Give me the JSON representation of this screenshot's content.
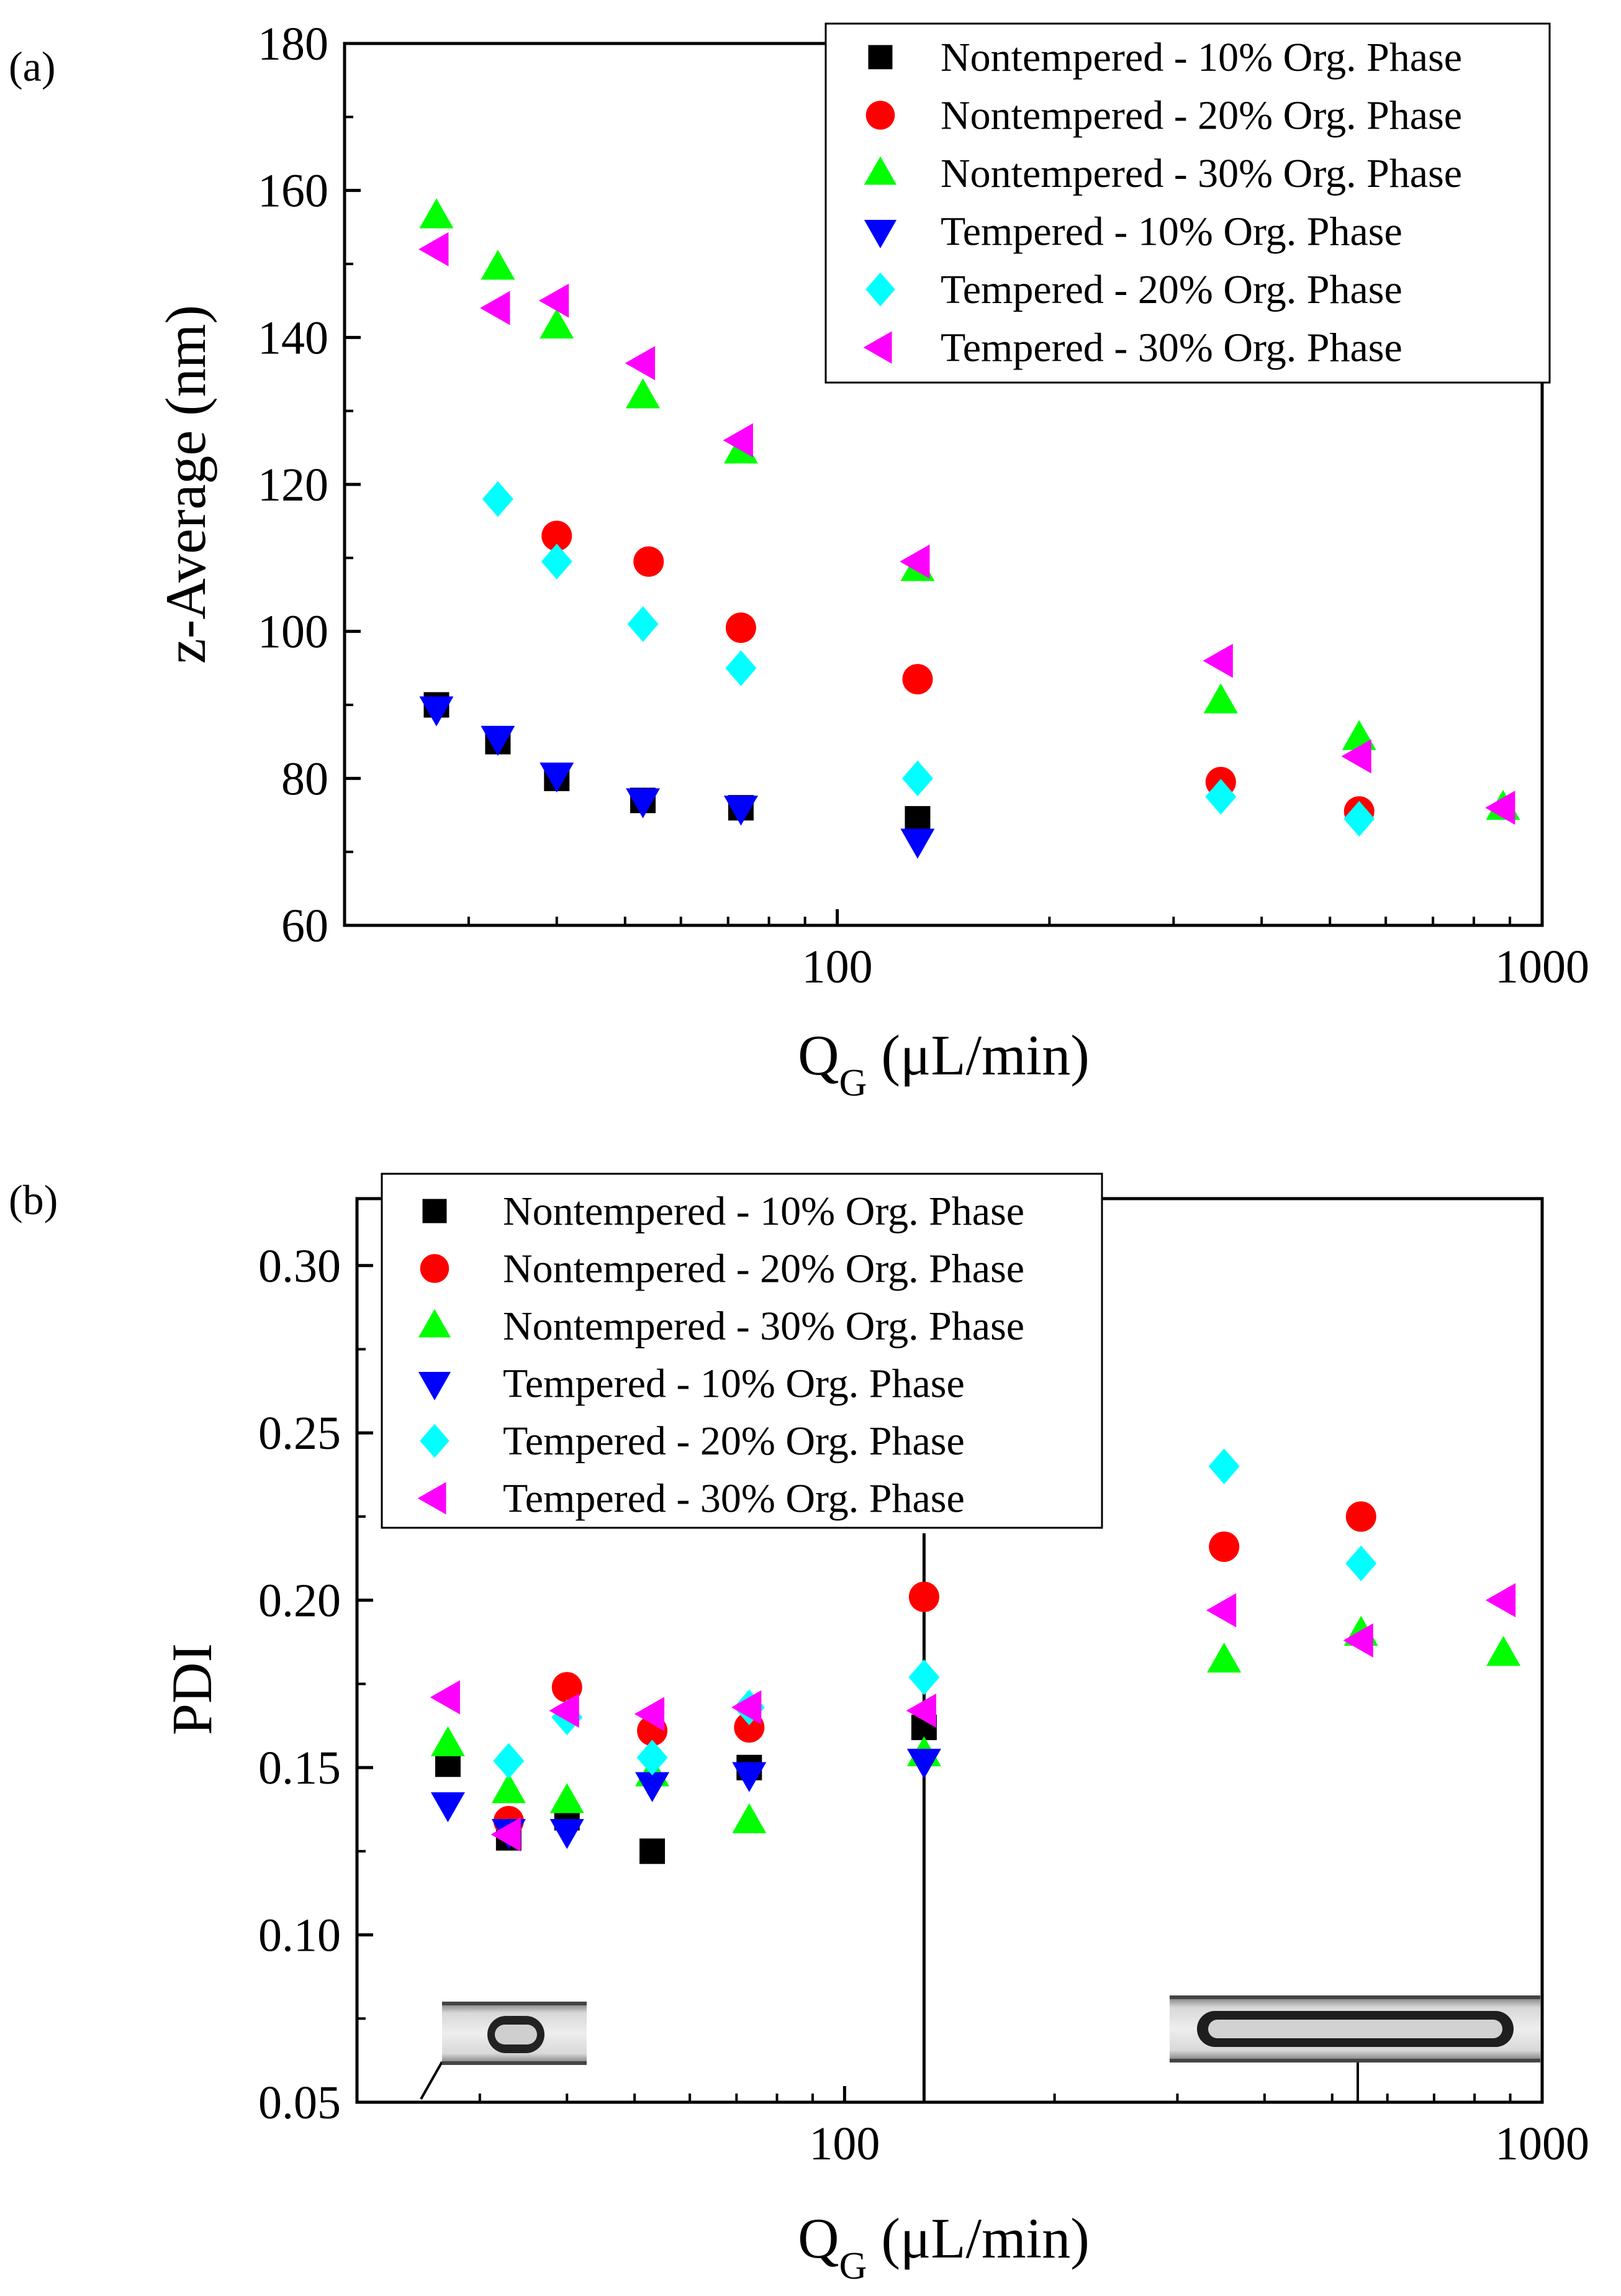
{
  "chart_data": [
    {
      "panel_label": "(a)",
      "type": "scatter",
      "xscale": "log",
      "xlim": [
        20,
        1000
      ],
      "ylim": [
        60,
        180
      ],
      "xticks": [
        100,
        1000
      ],
      "xtick_labels": [
        "100",
        "1000"
      ],
      "yticks": [
        60,
        80,
        100,
        120,
        140,
        160,
        180
      ],
      "ytick_labels": [
        "60",
        "80",
        "100",
        "120",
        "140",
        "160",
        "180"
      ],
      "xlabel": "Q",
      "xlabel_sub": "G",
      "xlabel_unit": " (μL/min)",
      "ylabel": "z-Average (nm)",
      "legend_position": "top-right",
      "series": [
        {
          "name": "Nontempered - 10% Org. Phase",
          "marker": "square",
          "color": "#000000",
          "x": [
            27,
            33,
            40,
            53,
            73,
            130
          ],
          "y": [
            90,
            85,
            80,
            77,
            76,
            74.5
          ]
        },
        {
          "name": "Nontempered - 20% Org. Phase",
          "marker": "circle",
          "color": "#ff0000",
          "x": [
            40,
            54,
            73,
            130,
            350,
            550
          ],
          "y": [
            113,
            109.5,
            100.5,
            93.5,
            79.5,
            75.5
          ]
        },
        {
          "name": "Nontempered - 30% Org. Phase",
          "marker": "triangle-up",
          "color": "#00ff00",
          "x": [
            27,
            33,
            40,
            53,
            73,
            130,
            350,
            550,
            880
          ],
          "y": [
            156.5,
            149.5,
            141.5,
            132,
            124.5,
            108.5,
            90.5,
            85.5,
            76
          ]
        },
        {
          "name": "Tempered - 10% Org. Phase",
          "marker": "triangle-down",
          "color": "#0000ff",
          "x": [
            27,
            33,
            40,
            53,
            73,
            130
          ],
          "y": [
            89.5,
            85.5,
            80.5,
            77,
            76,
            71.5
          ]
        },
        {
          "name": "Tempered - 20% Org. Phase",
          "marker": "diamond",
          "color": "#00ffff",
          "x": [
            33,
            40,
            53,
            73,
            130,
            350,
            550
          ],
          "y": [
            118,
            109.5,
            101,
            95,
            80,
            77.5,
            74.5
          ]
        },
        {
          "name": "Tempered - 30% Org. Phase",
          "marker": "triangle-left",
          "color": "#ff00ff",
          "x": [
            27,
            33,
            40,
            53,
            73,
            130,
            350,
            550,
            880
          ],
          "y": [
            152,
            144,
            145,
            136.5,
            126,
            109.5,
            96,
            83,
            76
          ]
        }
      ]
    },
    {
      "panel_label": "(b)",
      "type": "scatter",
      "xscale": "log",
      "xlim": [
        20,
        1000
      ],
      "ylim": [
        0.05,
        0.32
      ],
      "xticks": [
        100,
        1000
      ],
      "xtick_labels": [
        "100",
        "1000"
      ],
      "yticks": [
        0.05,
        0.1,
        0.15,
        0.2,
        0.25,
        0.3
      ],
      "ytick_labels": [
        "0.05",
        "0.10",
        "0.15",
        "0.20",
        "0.25",
        "0.30"
      ],
      "xlabel": "Q",
      "xlabel_sub": "G",
      "xlabel_unit": " (μL/min)",
      "ylabel": "PDI",
      "legend_position": "top-left",
      "series": [
        {
          "name": "Nontempered - 10% Org. Phase",
          "marker": "square",
          "color": "#000000",
          "x": [
            27,
            33,
            40,
            53,
            73,
            130
          ],
          "y": [
            0.151,
            0.129,
            0.135,
            0.125,
            0.15,
            0.162
          ]
        },
        {
          "name": "Nontempered - 20% Org. Phase",
          "marker": "circle",
          "color": "#ff0000",
          "x": [
            33,
            40,
            53,
            73,
            130,
            350,
            550
          ],
          "y": [
            0.134,
            0.174,
            0.161,
            0.162,
            0.201,
            0.216,
            0.225
          ]
        },
        {
          "name": "Nontempered - 30% Org. Phase",
          "marker": "triangle-up",
          "color": "#00ff00",
          "x": [
            27,
            33,
            40,
            53,
            73,
            130,
            350,
            550,
            880
          ],
          "y": [
            0.157,
            0.143,
            0.14,
            0.148,
            0.134,
            0.154,
            0.182,
            0.19,
            0.184
          ]
        },
        {
          "name": "Tempered - 10% Org. Phase",
          "marker": "triangle-down",
          "color": "#0000ff",
          "x": [
            27,
            33,
            40,
            53,
            73,
            130
          ],
          "y": [
            0.139,
            0.131,
            0.131,
            0.145,
            0.148,
            0.152
          ]
        },
        {
          "name": "Tempered - 20% Org. Phase",
          "marker": "diamond",
          "color": "#00ffff",
          "x": [
            33,
            40,
            53,
            73,
            130,
            350,
            550
          ],
          "y": [
            0.152,
            0.165,
            0.153,
            0.168,
            0.177,
            0.24,
            0.211
          ]
        },
        {
          "name": "Tempered - 30% Org. Phase",
          "marker": "triangle-left",
          "color": "#ff00ff",
          "x": [
            27,
            33,
            40,
            53,
            73,
            130,
            350,
            550,
            880
          ],
          "y": [
            0.171,
            0.13,
            0.167,
            0.166,
            0.168,
            0.167,
            0.197,
            0.188,
            0.2
          ]
        }
      ],
      "annotations": [
        {
          "type": "vline",
          "x": 130,
          "y_from": 0.05,
          "y_to": 0.22
        },
        {
          "type": "droplet-image",
          "description": "short slug",
          "x": 33
        },
        {
          "type": "droplet-image",
          "description": "long slug",
          "x": 550
        }
      ]
    }
  ]
}
